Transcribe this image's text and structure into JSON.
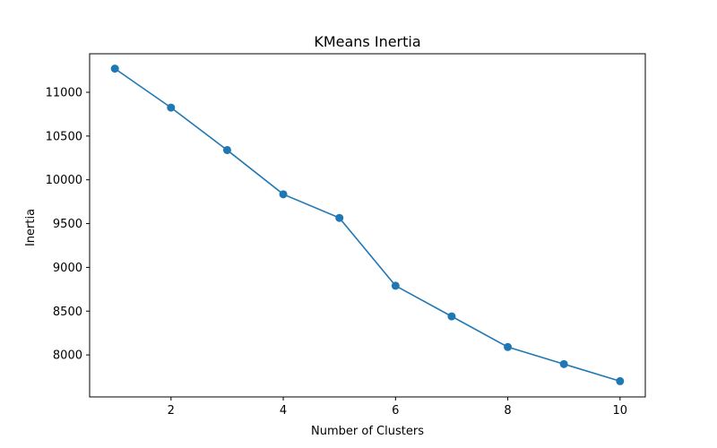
{
  "chart_data": {
    "type": "line",
    "title": "KMeans Inertia",
    "xlabel": "Number of Clusters",
    "ylabel": "Inertia",
    "xlim": [
      0.55,
      10.45
    ],
    "ylim": [
      7520,
      11440
    ],
    "xticks": [
      2,
      4,
      6,
      8,
      10
    ],
    "yticks": [
      8000,
      8500,
      9000,
      9500,
      10000,
      10500,
      11000
    ],
    "grid": false,
    "legend": "none",
    "series": [
      {
        "color": "#1f77b4",
        "marker": "circle",
        "x": [
          1,
          2,
          3,
          4,
          5,
          6,
          7,
          8,
          9,
          10
        ],
        "values": [
          11270,
          10825,
          10340,
          9835,
          9565,
          8790,
          8440,
          8090,
          7895,
          7700
        ]
      }
    ]
  }
}
